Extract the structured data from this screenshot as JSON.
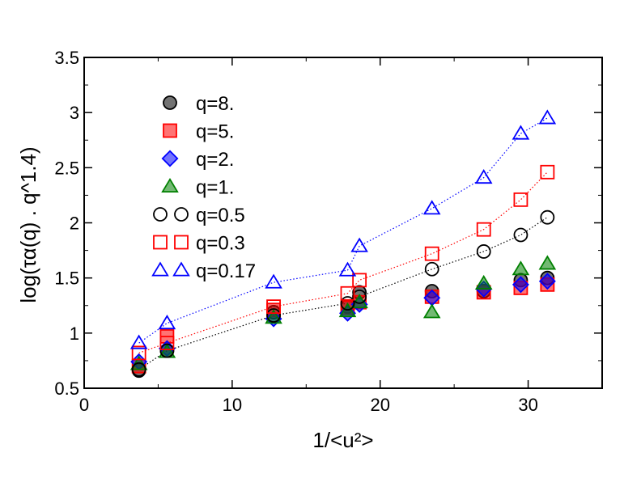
{
  "chart_data": {
    "type": "scatter",
    "xlabel": "1/<u²>",
    "ylabel": "log(τα(q) . q^1.4)",
    "xlim": [
      0,
      35
    ],
    "ylim": [
      0.5,
      3.5
    ],
    "x_ticks": [
      0,
      10,
      20,
      30
    ],
    "y_ticks": [
      0.5,
      1,
      1.5,
      2,
      2.5,
      3,
      3.5
    ],
    "x_tick_labels": [
      "0",
      "10",
      "20",
      "30"
    ],
    "y_tick_labels": [
      "0.5",
      "1",
      "1.5",
      "2",
      "2.5",
      "3",
      "3.5"
    ],
    "legend_position": "top-left",
    "grid": false,
    "series": [
      {
        "name": "q=8.",
        "marker": "circle",
        "filled": true,
        "color": "#000000",
        "x": [
          3.7,
          5.6,
          12.8,
          17.8,
          18.6,
          23.5,
          27.0,
          29.5,
          31.3
        ],
        "y": [
          0.66,
          0.84,
          1.19,
          1.24,
          1.37,
          1.38,
          1.38,
          1.48,
          1.5
        ]
      },
      {
        "name": "q=5.",
        "marker": "square",
        "filled": true,
        "color": "#ff0000",
        "x": [
          3.7,
          5.6,
          12.8,
          17.8,
          18.6,
          23.5,
          27.0,
          29.5,
          31.3
        ],
        "y": [
          0.7,
          0.97,
          1.21,
          1.23,
          1.28,
          1.33,
          1.37,
          1.41,
          1.44
        ]
      },
      {
        "name": "q=2.",
        "marker": "diamond",
        "filled": true,
        "color": "#0000ff",
        "x": [
          3.7,
          5.6,
          12.8,
          17.8,
          18.6,
          23.5,
          27.0,
          29.5,
          31.3
        ],
        "y": [
          0.74,
          0.86,
          1.13,
          1.18,
          1.26,
          1.32,
          1.4,
          1.44,
          1.47
        ]
      },
      {
        "name": "q=1.",
        "marker": "triangle",
        "filled": true,
        "color": "#008000",
        "x": [
          3.7,
          5.6,
          12.8,
          17.8,
          18.6,
          23.5,
          27.0,
          29.5,
          31.3
        ],
        "y": [
          0.72,
          0.83,
          1.14,
          1.2,
          1.28,
          1.19,
          1.45,
          1.58,
          1.63
        ]
      },
      {
        "name": "q=0.5",
        "marker": "circle",
        "filled": false,
        "color": "#000000",
        "line": true,
        "x": [
          3.7,
          5.6,
          12.8,
          17.8,
          18.6,
          23.5,
          27.0,
          29.5,
          31.3
        ],
        "y": [
          0.67,
          0.84,
          1.16,
          1.27,
          1.33,
          1.58,
          1.74,
          1.89,
          2.05
        ]
      },
      {
        "name": "q=0.3",
        "marker": "square",
        "filled": false,
        "color": "#ff0000",
        "line": true,
        "x": [
          3.7,
          5.6,
          12.8,
          17.8,
          18.6,
          23.5,
          27.0,
          29.5,
          31.3
        ],
        "y": [
          0.82,
          0.91,
          1.24,
          1.36,
          1.48,
          1.72,
          1.94,
          2.21,
          2.46
        ]
      },
      {
        "name": "q=0.17",
        "marker": "triangle",
        "filled": false,
        "color": "#0000ff",
        "line": true,
        "x": [
          3.7,
          5.6,
          12.8,
          17.8,
          18.6,
          23.5,
          27.0,
          29.5,
          31.3
        ],
        "y": [
          0.91,
          1.09,
          1.46,
          1.57,
          1.79,
          2.13,
          2.41,
          2.81,
          2.95
        ]
      }
    ]
  }
}
